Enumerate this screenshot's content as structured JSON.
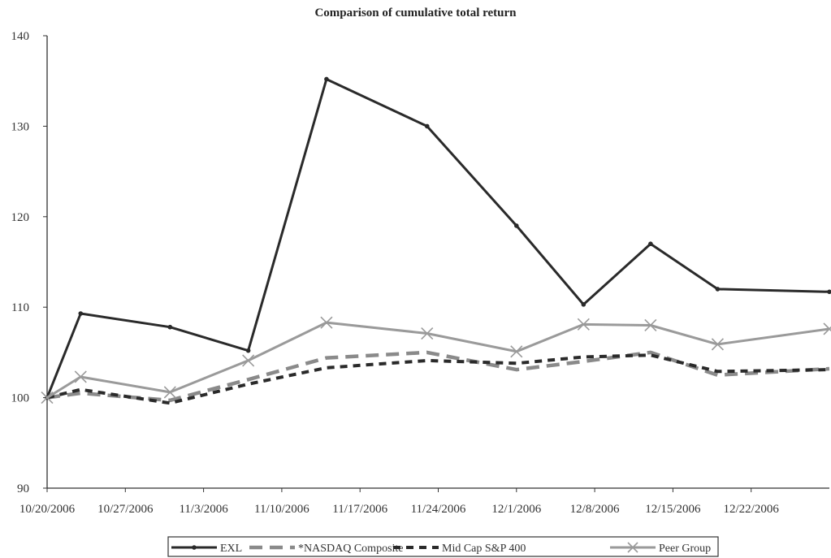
{
  "chart_data": {
    "type": "line",
    "title": "Comparison of cumulative total return",
    "xlabel": "",
    "ylabel": "",
    "ylim": [
      90,
      140
    ],
    "yticks": [
      90,
      100,
      110,
      120,
      130,
      140
    ],
    "xlim": [
      "10/20/2006",
      "12/29/2006"
    ],
    "xtick_labels": [
      "10/20/2006",
      "10/27/2006",
      "11/3/2006",
      "11/10/2006",
      "11/17/2006",
      "11/24/2006",
      "12/1/2006",
      "12/8/2006",
      "12/15/2006",
      "12/22/2006"
    ],
    "x": [
      "10/20/2006",
      "10/23/2006",
      "10/31/2006",
      "11/7/2006",
      "11/14/2006",
      "11/23/2006",
      "12/1/2006",
      "12/7/2006",
      "12/13/2006",
      "12/19/2006",
      "12/29/2006"
    ],
    "series": [
      {
        "name": "EXL",
        "color": "#2a2a2a",
        "style": "solid",
        "marker": "dot",
        "values": [
          100,
          109.3,
          107.8,
          105.2,
          135.2,
          130,
          119,
          110.3,
          117,
          112,
          111.7
        ]
      },
      {
        "name": "*NASDAQ Composite",
        "color": "#8a8a8a",
        "style": "longdash",
        "marker": "none",
        "values": [
          100,
          100.5,
          99.7,
          102,
          104.4,
          105,
          103.1,
          104,
          105,
          102.5,
          103.2
        ]
      },
      {
        "name": "Mid Cap S&P 400",
        "color": "#2a2a2a",
        "style": "dash",
        "marker": "none",
        "values": [
          100,
          100.9,
          99.4,
          101.5,
          103.3,
          104.1,
          103.8,
          104.5,
          104.7,
          102.9,
          103.1
        ]
      },
      {
        "name": "Peer Group",
        "color": "#9a9a9a",
        "style": "solid",
        "marker": "x",
        "values": [
          100,
          102.3,
          100.6,
          104.1,
          108.3,
          107.1,
          105.1,
          108.1,
          108,
          105.9,
          107.6
        ]
      }
    ],
    "grid": false,
    "legend_position": "bottom"
  }
}
